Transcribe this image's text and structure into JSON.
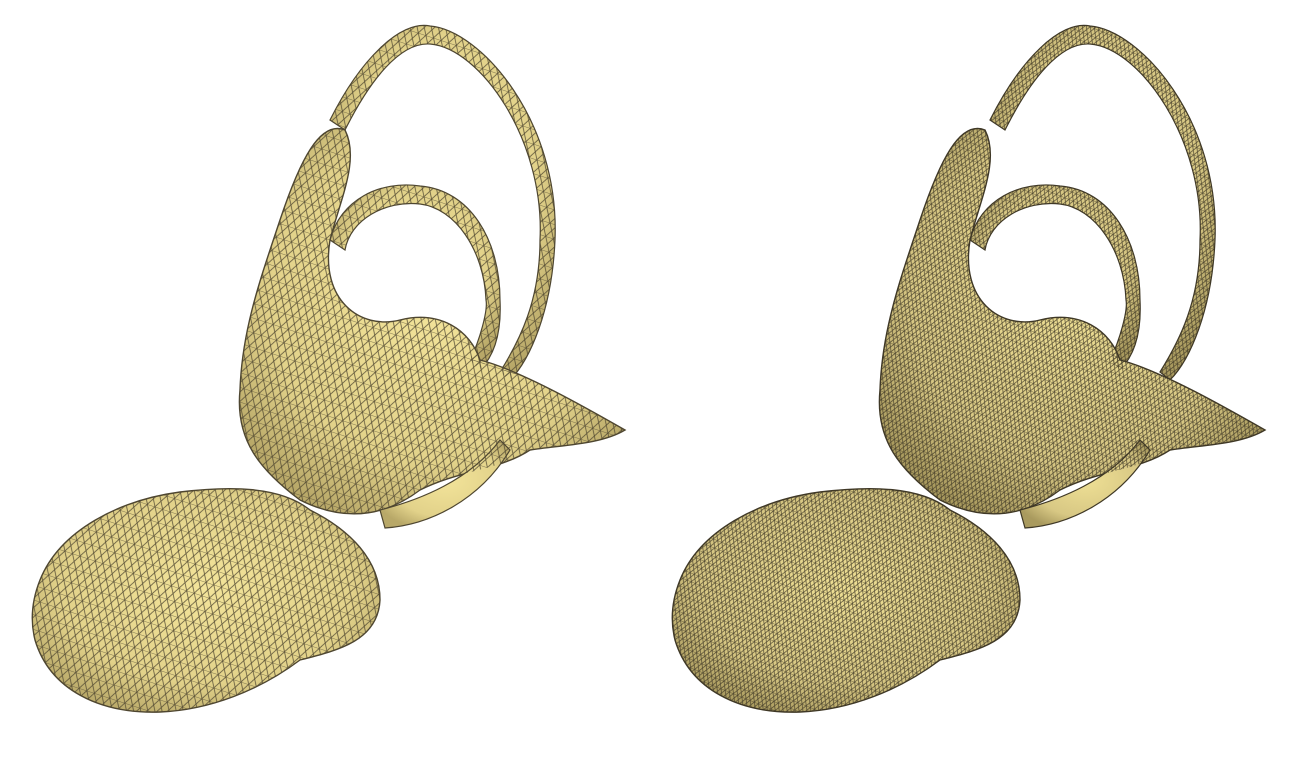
{
  "figure": {
    "panels": [
      {
        "id": "coarse",
        "mesh_density": "coarse"
      },
      {
        "id": "fine",
        "mesh_density": "fine"
      }
    ]
  },
  "colors": {
    "background": "#ffffff",
    "surface_fill": "#e2d28a",
    "surface_highlight": "#f3e49a",
    "surface_shadow": "#b8a868",
    "wire_coarse": "#4e4630",
    "wire_fine": "#3f3826"
  }
}
